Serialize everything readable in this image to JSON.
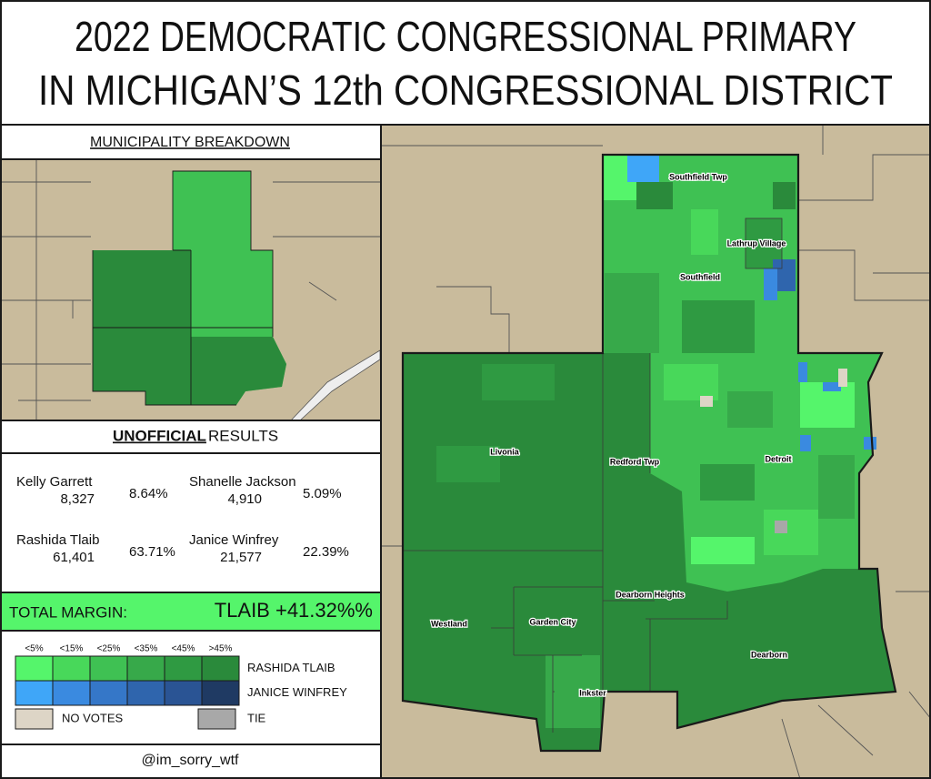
{
  "title": [
    "2022 DEMOCRATIC CONGRESSIONAL PRIMARY",
    "IN MICHIGAN’S 12th CONGRESSIONAL DISTRICT"
  ],
  "breakdown_title": "MUNICIPALITY BREAKDOWN",
  "results": {
    "title_bold": "UNOFFICIAL",
    "title_rest": "RESULTS",
    "candidates": [
      {
        "name": "Kelly Garrett",
        "votes": "8,327",
        "percent": "8.64%"
      },
      {
        "name": "Shanelle Jackson",
        "votes": "4,910",
        "percent": "5.09%"
      },
      {
        "name": "Rashida Tlaib",
        "votes": "61,401",
        "percent": "63.71%"
      },
      {
        "name": "Janice Winfrey",
        "votes": "21,577",
        "percent": "22.39%"
      }
    ]
  },
  "margin": {
    "label": "TOTAL MARGIN:",
    "value": "TLAIB +41.32%%"
  },
  "legend": {
    "bins": [
      "<5%",
      "<15%",
      "<25%",
      "<35%",
      "<45%",
      ">45%"
    ],
    "rows": [
      {
        "name": "RASHIDA TLAIB",
        "colors": [
          "#55f56b",
          "#48d85a",
          "#3fc153",
          "#37a94a",
          "#2f9a42",
          "#2a8a3b"
        ]
      },
      {
        "name": "JANICE WINFREY",
        "colors": [
          "#3fa6f8",
          "#3a8ae0",
          "#3577c8",
          "#2f65ad",
          "#2a5494",
          "#1f3a63"
        ]
      }
    ],
    "no_votes": {
      "label": "NO VOTES",
      "color": "#ddd5c6"
    },
    "tie": {
      "label": "TIE",
      "color": "#a8a8a8"
    }
  },
  "credit": "@im_sorry_wtf",
  "map_labels": [
    "Southfield Twp",
    "Lathrup Village",
    "Southfield",
    "Livonia",
    "Redford Twp",
    "Detroit",
    "Dearborn Heights",
    "Westland",
    "Garden City",
    "Inkster",
    "Dearborn"
  ]
}
